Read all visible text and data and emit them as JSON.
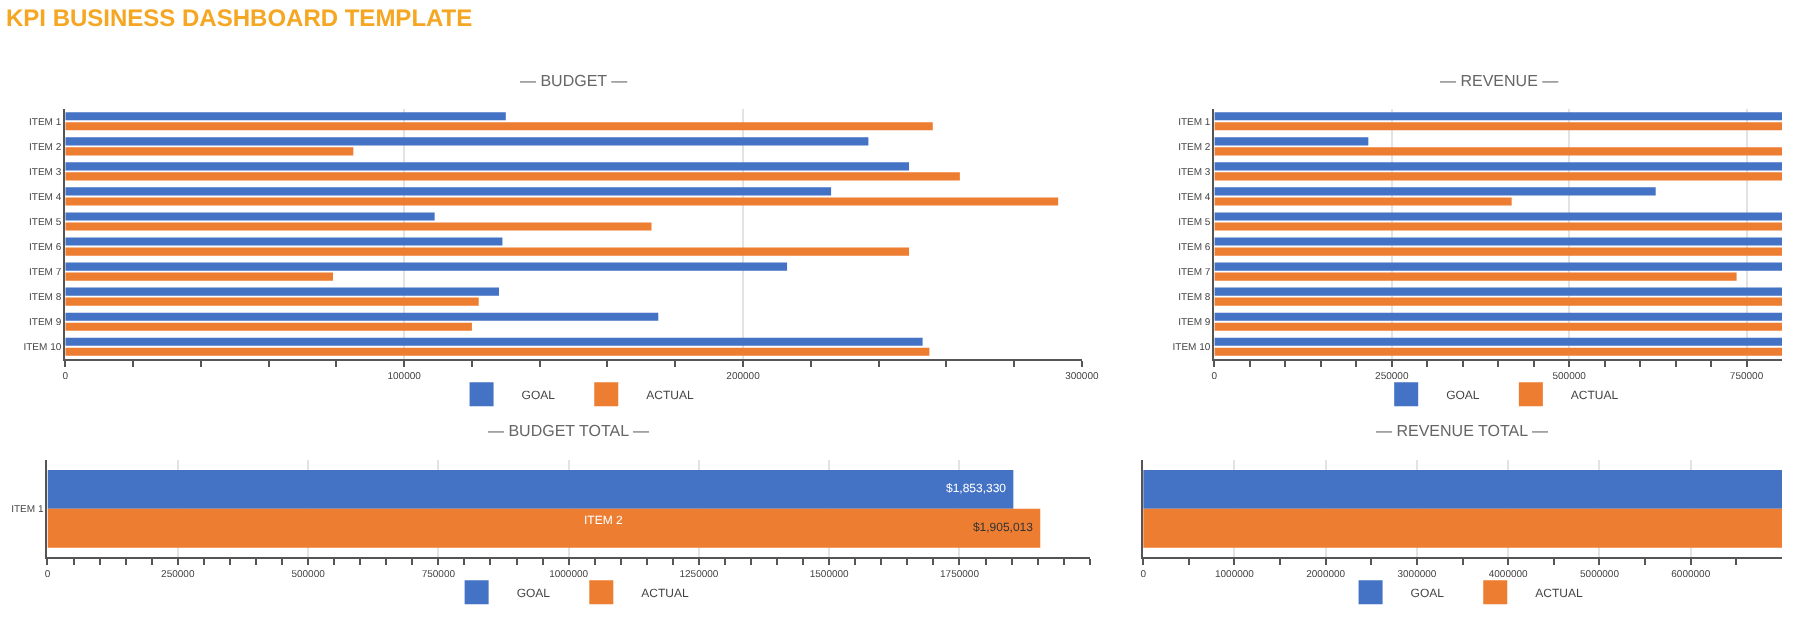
{
  "chart_data": [
    {
      "type": "bar",
      "orientation": "horizontal",
      "title": "— BUDGET —",
      "annotations": [
        "KPI BUSINESS DASHBOARD TEMPLATE"
      ],
      "legend": "bottom",
      "grid": "x",
      "categories": [
        "ITEM 1",
        "ITEM 2",
        "ITEM 3",
        "ITEM 4",
        "ITEM 5",
        "ITEM 6",
        "ITEM 7",
        "ITEM 8",
        "ITEM 9",
        "ITEM 10"
      ],
      "series": [
        {
          "name": "GOAL",
          "color": "#4472c4",
          "values": [
            130000,
            237000,
            249000,
            226000,
            109000,
            129000,
            213000,
            128000,
            175000,
            253000
          ]
        },
        {
          "name": "ACTUAL",
          "color": "#ed7d31",
          "values": [
            256000,
            85000,
            264000,
            293000,
            173000,
            249000,
            79000,
            122000,
            120000,
            255000
          ]
        }
      ],
      "xlim": [
        0,
        300000
      ],
      "xticks": [
        0,
        {
          "value": 20000,
          "label": null
        },
        {
          "value": 40000,
          "label": null
        },
        {
          "value": 60000,
          "label": null
        },
        {
          "value": 80000,
          "label": null
        },
        100000,
        {
          "value": 120000,
          "label": null
        },
        {
          "value": 140000,
          "label": null
        },
        {
          "value": 160000,
          "label": null
        },
        {
          "value": 180000,
          "label": null
        },
        200000,
        {
          "value": 220000,
          "label": null
        },
        {
          "value": 240000,
          "label": null
        },
        {
          "value": 260000,
          "label": null
        },
        {
          "value": 280000,
          "label": null
        },
        300000
      ]
    },
    {
      "type": "bar",
      "orientation": "horizontal",
      "title": "— REVENUE —",
      "legend": "bottom",
      "grid": "x",
      "categories": [
        "ITEM 1",
        "ITEM 2",
        "ITEM 3",
        "ITEM 4",
        "ITEM 5",
        "ITEM 6",
        "ITEM 7",
        "ITEM 8",
        "ITEM 9",
        "ITEM 10"
      ],
      "series": [
        {
          "name": "GOAL",
          "color": "#4472c4",
          "values": [
            800000,
            217000,
            800000,
            622000,
            800000,
            800000,
            800000,
            800000,
            800000,
            800000
          ]
        },
        {
          "name": "ACTUAL",
          "color": "#ed7d31",
          "values": [
            800000,
            800000,
            800000,
            419000,
            800000,
            800000,
            736000,
            800000,
            800000,
            800000
          ]
        }
      ],
      "xlim": [
        0,
        800000
      ],
      "xticks": [
        0,
        {
          "value": 50000,
          "label": null
        },
        {
          "value": 100000,
          "label": null
        },
        {
          "value": 150000,
          "label": null
        },
        {
          "value": 200000,
          "label": null
        },
        250000,
        {
          "value": 300000,
          "label": null
        },
        {
          "value": 350000,
          "label": null
        },
        {
          "value": 400000,
          "label": null
        },
        {
          "value": 450000,
          "label": null
        },
        500000,
        {
          "value": 550000,
          "label": null
        },
        {
          "value": 600000,
          "label": null
        },
        {
          "value": 650000,
          "label": null
        },
        {
          "value": 700000,
          "label": null
        },
        750000
      ]
    },
    {
      "type": "bar",
      "orientation": "horizontal",
      "title": "— BUDGET TOTAL —",
      "legend": "bottom",
      "grid": "x",
      "annotations": [
        "ITEM 2"
      ],
      "categories": [
        "ITEM 1"
      ],
      "series": [
        {
          "name": "GOAL",
          "color": "#4472c4",
          "values": [
            1853330
          ],
          "value_labels": [
            "$1,853,330"
          ]
        },
        {
          "name": "ACTUAL",
          "color": "#ed7d31",
          "values": [
            1905013
          ],
          "value_labels": [
            "$1,905,013"
          ]
        }
      ],
      "xlim": [
        0,
        2000000
      ],
      "xticks": [
        0,
        {
          "value": 50000,
          "label": null
        },
        {
          "value": 100000,
          "label": null
        },
        {
          "value": 150000,
          "label": null
        },
        {
          "value": 200000,
          "label": null
        },
        250000,
        {
          "value": 300000,
          "label": null
        },
        {
          "value": 350000,
          "label": null
        },
        {
          "value": 400000,
          "label": null
        },
        {
          "value": 450000,
          "label": null
        },
        500000,
        {
          "value": 550000,
          "label": null
        },
        {
          "value": 600000,
          "label": null
        },
        {
          "value": 650000,
          "label": null
        },
        {
          "value": 700000,
          "label": null
        },
        750000,
        {
          "value": 800000,
          "label": null
        },
        {
          "value": 850000,
          "label": null
        },
        {
          "value": 900000,
          "label": null
        },
        {
          "value": 950000,
          "label": null
        },
        1000000,
        {
          "value": 1050000,
          "label": null
        },
        {
          "value": 1100000,
          "label": null
        },
        {
          "value": 1150000,
          "label": null
        },
        {
          "value": 1200000,
          "label": null
        },
        1250000,
        {
          "value": 1300000,
          "label": null
        },
        {
          "value": 1350000,
          "label": null
        },
        {
          "value": 1400000,
          "label": null
        },
        {
          "value": 1450000,
          "label": null
        },
        1500000,
        {
          "value": 1550000,
          "label": null
        },
        {
          "value": 1600000,
          "label": null
        },
        {
          "value": 1650000,
          "label": null
        },
        {
          "value": 1700000,
          "label": null
        },
        1750000,
        {
          "value": 1800000,
          "label": null
        },
        {
          "value": 1850000,
          "label": null
        },
        {
          "value": 1900000,
          "label": null
        },
        {
          "value": 1950000,
          "label": null
        },
        {
          "value": 2000000,
          "label": null
        }
      ]
    },
    {
      "type": "bar",
      "orientation": "horizontal",
      "title": "— REVENUE TOTAL —",
      "legend": "bottom",
      "grid": "x",
      "categories": [
        null
      ],
      "series": [
        {
          "name": "GOAL",
          "color": "#4472c4",
          "values": [
            7000000
          ]
        },
        {
          "name": "ACTUAL",
          "color": "#ed7d31",
          "values": [
            7000000
          ]
        }
      ],
      "xlim": [
        0,
        7000000
      ],
      "xticks": [
        0,
        {
          "value": 500000,
          "label": null
        },
        1000000,
        {
          "value": 1500000,
          "label": null
        },
        2000000,
        {
          "value": 2500000,
          "label": null
        },
        3000000,
        {
          "value": 3500000,
          "label": null
        },
        4000000,
        {
          "value": 4500000,
          "label": null
        },
        5000000,
        {
          "value": 5500000,
          "label": null
        },
        6000000,
        {
          "value": 6500000,
          "label": null
        }
      ]
    }
  ]
}
